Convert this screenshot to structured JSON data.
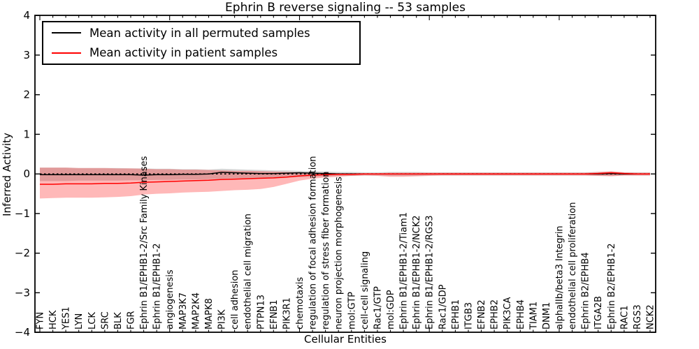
{
  "chart_data": {
    "type": "line",
    "title": "Ephrin B reverse signaling -- 53 samples",
    "xlabel": "Cellular Entities",
    "ylabel": "Inferred Activity",
    "ylim": [
      -4,
      4
    ],
    "yticks": [
      -4,
      -3,
      -2,
      -1,
      0,
      1,
      2,
      3,
      4
    ],
    "x_major_tick_indices": [
      0,
      10,
      20,
      30,
      40
    ],
    "grid": false,
    "legend_position": "upper left",
    "zero_line": {
      "style": "dotted",
      "color": "#000000",
      "y": 0
    },
    "categories": [
      "FYN",
      "HCK",
      "YES1",
      "LYN",
      "LCK",
      "SRC",
      "BLK",
      "FGR",
      "Ephrin B1/EPHB1-2/Src Family Kinases",
      "Ephrin B1/EPHB1-2",
      "angiogenesis",
      "MAP3K7",
      "MAP2K4",
      "MAPK8",
      "PI3K",
      "cell adhesion",
      "endothelial cell migration",
      "PTPN13",
      "EFNB1",
      "PIK3R1",
      "chemotaxis",
      "regulation of focal adhesion formation",
      "regulation of stress fiber formation",
      "neuron projection morphogenesis",
      "mol:GTP",
      "cell-cell signaling",
      "Rac1/GTP",
      "mol:GDP",
      "Ephrin B1/EPHB1-2/Tiam1",
      "Ephrin B1/EPHB1-2/NCK2",
      "Ephrin B1/EPHB1-2/RGS3",
      "Rac1/GDP",
      "EPHB1",
      "ITGB3",
      "EFNB2",
      "EPHB2",
      "PIK3CA",
      "EPHB4",
      "TIAM1",
      "DNM1",
      "alphaIIb/beta3 Integrin",
      "endothelial cell proliferation",
      "Ephrin B2/EPHB4",
      "ITGA2B",
      "Ephrin B2/EPHB1-2",
      "RAC1",
      "RGS3",
      "NCK2"
    ],
    "series": [
      {
        "name": "Mean activity in all permuted samples",
        "color": "#000000",
        "values": [
          -0.02,
          -0.02,
          -0.02,
          -0.02,
          -0.02,
          -0.02,
          -0.02,
          -0.02,
          -0.03,
          -0.02,
          -0.02,
          -0.01,
          -0.01,
          0,
          0.04,
          0.03,
          0.02,
          0.01,
          0.01,
          0.02,
          0.03,
          0.02,
          0.01,
          0,
          0,
          0,
          0,
          0,
          0,
          0,
          0,
          0,
          0,
          0,
          0,
          0,
          0,
          0,
          0,
          0,
          0,
          0,
          0,
          0,
          0.01,
          0,
          0,
          0
        ]
      },
      {
        "name": "Mean activity in patient samples",
        "color": "#ff0000",
        "values": [
          -0.26,
          -0.26,
          -0.25,
          -0.25,
          -0.25,
          -0.24,
          -0.24,
          -0.23,
          -0.21,
          -0.2,
          -0.19,
          -0.18,
          -0.17,
          -0.16,
          -0.14,
          -0.13,
          -0.12,
          -0.11,
          -0.1,
          -0.08,
          -0.05,
          -0.03,
          -0.02,
          -0.01,
          -0.01,
          0,
          0,
          0,
          0,
          0,
          0,
          0,
          0,
          0,
          0,
          0,
          0,
          0,
          0,
          0,
          0,
          0,
          0,
          0.01,
          0.03,
          0.01,
          0,
          0
        ]
      }
    ],
    "bands": [
      {
        "name": "permuted samples range",
        "color": "#000000",
        "opacity": 0.16,
        "upper": [
          0.16,
          0.16,
          0.16,
          0.15,
          0.15,
          0.15,
          0.15,
          0.14,
          0.14,
          0.13,
          0.13,
          0.12,
          0.12,
          0.11,
          0.13,
          0.12,
          0.11,
          0.1,
          0.09,
          0.09,
          0.08,
          0.07,
          0.06,
          0.05,
          0.05,
          0.04,
          0.04,
          0.05,
          0.05,
          0.05,
          0.04,
          0.04,
          0.04,
          0.04,
          0.04,
          0.04,
          0.04,
          0.04,
          0.04,
          0.04,
          0.04,
          0.04,
          0.04,
          0.05,
          0.05,
          0.04,
          0.04,
          0.04
        ],
        "lower": [
          -0.18,
          -0.18,
          -0.18,
          -0.17,
          -0.17,
          -0.17,
          -0.17,
          -0.16,
          -0.16,
          -0.15,
          -0.15,
          -0.14,
          -0.14,
          -0.13,
          -0.12,
          -0.11,
          -0.1,
          -0.1,
          -0.09,
          -0.09,
          -0.08,
          -0.07,
          -0.06,
          -0.05,
          -0.05,
          -0.04,
          -0.04,
          -0.05,
          -0.05,
          -0.05,
          -0.04,
          -0.04,
          -0.04,
          -0.04,
          -0.04,
          -0.04,
          -0.04,
          -0.04,
          -0.04,
          -0.04,
          -0.04,
          -0.04,
          -0.04,
          -0.05,
          -0.05,
          -0.04,
          -0.04,
          -0.04
        ]
      },
      {
        "name": "patient samples range",
        "color": "#ff0000",
        "opacity": 0.28,
        "upper": [
          0.16,
          0.16,
          0.16,
          0.15,
          0.15,
          0.15,
          0.14,
          0.14,
          0.13,
          0.12,
          0.12,
          0.11,
          0.11,
          0.1,
          0.09,
          0.08,
          0.08,
          0.07,
          0.06,
          0.05,
          0.04,
          0.03,
          0.03,
          0.02,
          0.02,
          0.02,
          0.02,
          0.03,
          0.03,
          0.03,
          0.03,
          0.03,
          0.03,
          0.03,
          0.03,
          0.03,
          0.03,
          0.03,
          0.03,
          0.03,
          0.03,
          0.03,
          0.03,
          0.05,
          0.07,
          0.04,
          0.03,
          0.03
        ],
        "lower": [
          -0.62,
          -0.61,
          -0.6,
          -0.6,
          -0.6,
          -0.59,
          -0.58,
          -0.56,
          -0.52,
          -0.5,
          -0.49,
          -0.47,
          -0.46,
          -0.45,
          -0.43,
          -0.41,
          -0.4,
          -0.38,
          -0.33,
          -0.25,
          -0.17,
          -0.12,
          -0.09,
          -0.07,
          -0.05,
          -0.04,
          -0.05,
          -0.07,
          -0.07,
          -0.06,
          -0.05,
          -0.04,
          -0.04,
          -0.04,
          -0.04,
          -0.04,
          -0.04,
          -0.04,
          -0.04,
          -0.04,
          -0.04,
          -0.04,
          -0.04,
          -0.05,
          -0.06,
          -0.04,
          -0.04,
          -0.04
        ]
      }
    ]
  }
}
